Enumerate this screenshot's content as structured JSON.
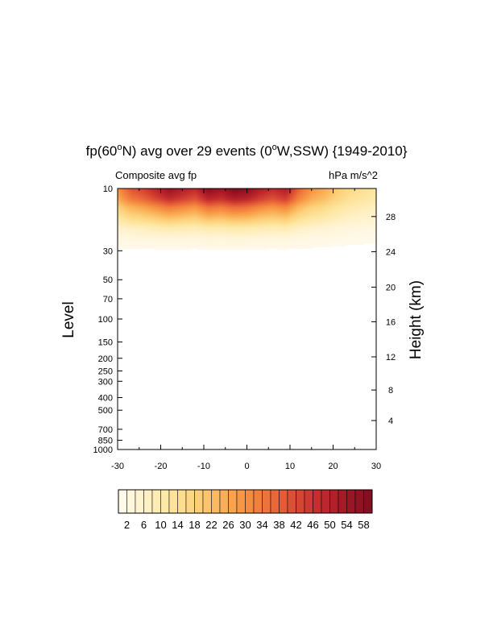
{
  "chart_data": {
    "type": "heatmap",
    "title": "fp(60°N) avg over 29 events (0°W,SSW) {1949-2010}",
    "title_parts": {
      "pre": "fp(60",
      "sup1": "o",
      "mid": "N) avg over 29 events (0",
      "sup2": "o",
      "post": "W,SSW) {1949-2010}"
    },
    "left_label": "Composite avg fp",
    "right_label": "hPa m/s^2",
    "ylabel": "Level",
    "ylabel_right": "Height (km)",
    "xlabel": "",
    "xlim": [
      -30,
      30
    ],
    "x_ticks": [
      -30,
      -20,
      -10,
      0,
      10,
      20,
      30
    ],
    "y_scale": "log",
    "ylim": [
      1000,
      10
    ],
    "y_ticks": [
      10,
      30,
      50,
      70,
      100,
      150,
      200,
      250,
      300,
      400,
      500,
      700,
      850,
      1000
    ],
    "right_ticks": [
      4,
      8,
      12,
      16,
      20,
      24,
      28
    ],
    "right_tick_levels": [
      {
        "km": 4,
        "hPa": 600
      },
      {
        "km": 8,
        "hPa": 350
      },
      {
        "km": 12,
        "hPa": 195
      },
      {
        "km": 16,
        "hPa": 105
      },
      {
        "km": 20,
        "hPa": 57
      },
      {
        "km": 24,
        "hPa": 30.5
      },
      {
        "km": 28,
        "hPa": 16.4
      }
    ],
    "colorbar": {
      "min": 0,
      "max": 60,
      "step": 2,
      "labels": [
        "2",
        "6",
        "10",
        "14",
        "18",
        "22",
        "26",
        "30",
        "34",
        "38",
        "42",
        "46",
        "50",
        "54",
        "58"
      ],
      "colors": [
        "#fffaee",
        "#fff1c9",
        "#fde6a0",
        "#fcd37d",
        "#fab45c",
        "#f69142",
        "#ec6e3a",
        "#d94a34",
        "#c02a2d",
        "#a11726",
        "#7e0d1f"
      ]
    },
    "field": {
      "levels_hPa": [
        10,
        12,
        14,
        17,
        20,
        24,
        30
      ],
      "level_factor": [
        1.0,
        0.85,
        0.6,
        0.38,
        0.18,
        0.06,
        0.0
      ],
      "x": [
        -30,
        -27,
        -24,
        -21,
        -18,
        -15,
        -12,
        -9,
        -6,
        -3,
        0,
        3,
        6,
        9,
        12,
        15,
        18,
        21,
        24,
        27,
        30
      ],
      "top_values": [
        30,
        40,
        44,
        50,
        56,
        52,
        48,
        58,
        55,
        60,
        58,
        52,
        48,
        52,
        38,
        30,
        26,
        20,
        16,
        14,
        12
      ]
    }
  }
}
